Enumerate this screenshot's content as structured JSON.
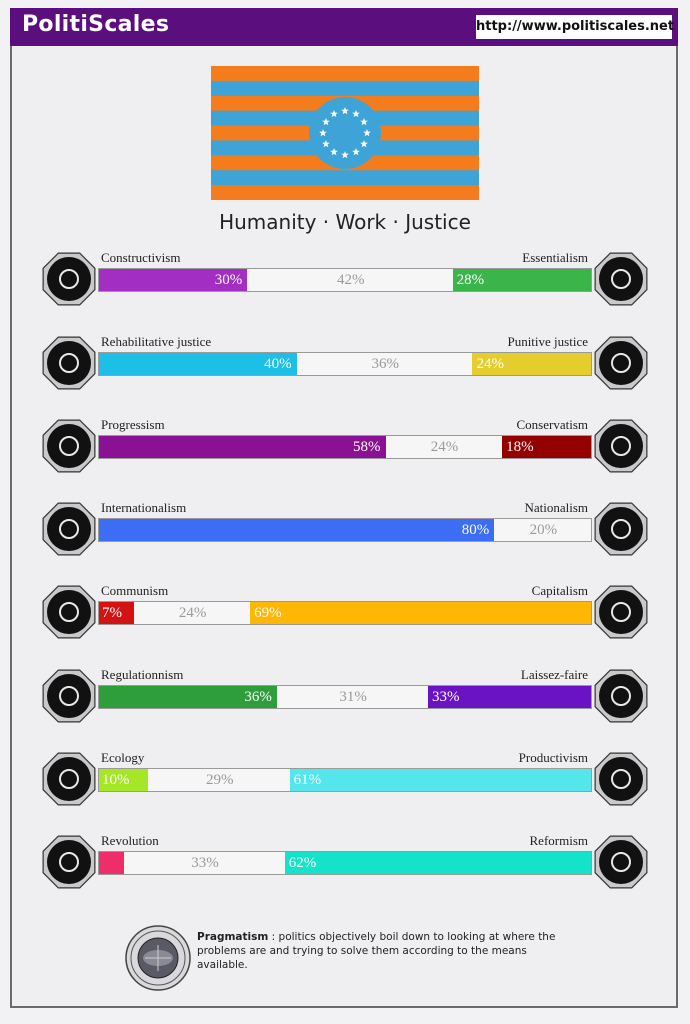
{
  "header": {
    "brand": "PolitiScales",
    "url": "http://www.politiscales.net",
    "color": "#5b0f7e"
  },
  "flag": {
    "stripe_orange": "#f47c1c",
    "stripe_blue": "#3ea3d6",
    "stars": 12
  },
  "motto": "Humanity · Work · Justice",
  "axes": [
    {
      "left_label": "Constructivism",
      "right_label": "Essentialism",
      "left_icon": "eye-icon",
      "right_icon": "flower-burst-icon",
      "left": 30,
      "mid": 42,
      "right": 28,
      "left_text": "30%",
      "mid_text": "42%",
      "right_text": "28%",
      "left_color": "#a22ec4",
      "right_color": "#39b54a"
    },
    {
      "left_label": "Rehabilitative justice",
      "right_label": "Punitive justice",
      "left_icon": "handshake-icon",
      "right_icon": "prison-bars-icon",
      "left": 40,
      "mid": 36,
      "right": 24,
      "left_text": "40%",
      "mid_text": "36%",
      "right_text": "24%",
      "left_color": "#1ebfe6",
      "right_color": "#e6cd2e"
    },
    {
      "left_label": "Progressism",
      "right_label": "Conservatism",
      "left_icon": "rocket-icon",
      "right_icon": "quill-icon",
      "left": 58,
      "mid": 24,
      "right": 18,
      "left_text": "58%",
      "mid_text": "24%",
      "right_text": "18%",
      "left_color": "#8a1193",
      "right_color": "#950000"
    },
    {
      "left_label": "Internationalism",
      "right_label": "Nationalism",
      "left_icon": "globe-icon",
      "right_icon": "flag-icon",
      "left": 80,
      "mid": 20,
      "right": 0,
      "left_text": "80%",
      "mid_text": "20%",
      "right_text": "",
      "left_color": "#3b6ef5",
      "right_color": "#e0432f"
    },
    {
      "left_label": "Communism",
      "right_label": "Capitalism",
      "left_icon": "hammer-sickle-icon",
      "right_icon": "money-bag-icon",
      "left": 7,
      "mid": 24,
      "right": 69,
      "left_text": "7%",
      "mid_text": "24%",
      "right_text": "69%",
      "left_color": "#d31212",
      "right_color": "#ffb703"
    },
    {
      "left_label": "Regulationnism",
      "right_label": "Laissez-faire",
      "left_icon": "triangle-ruler-icon",
      "right_icon": "butterfly-icon",
      "left": 36,
      "mid": 31,
      "right": 33,
      "left_text": "36%",
      "mid_text": "31%",
      "right_text": "33%",
      "left_color": "#2e9e3d",
      "right_color": "#6a13c4"
    },
    {
      "left_label": "Ecology",
      "right_label": "Productivism",
      "left_icon": "tree-icon",
      "right_icon": "gear-icon",
      "left": 10,
      "mid": 29,
      "right": 61,
      "left_text": "10%",
      "mid_text": "29%",
      "right_text": "61%",
      "left_color": "#a5e627",
      "right_color": "#55e6ec"
    },
    {
      "left_label": "Revolution",
      "right_label": "Reformism",
      "left_icon": "fist-icon",
      "right_icon": "bridge-icon",
      "left": 5,
      "mid": 33,
      "right": 62,
      "left_text": "",
      "mid_text": "33%",
      "right_text": "62%",
      "left_color": "#ee2d6a",
      "right_color": "#14e3c9"
    }
  ],
  "footer": {
    "seal_icon": "pragmatism-seal-icon",
    "term": "Pragmatism",
    "separator": " : ",
    "description": "politics objectively boil down to looking at where the problems are and trying to solve them according to the means available."
  }
}
